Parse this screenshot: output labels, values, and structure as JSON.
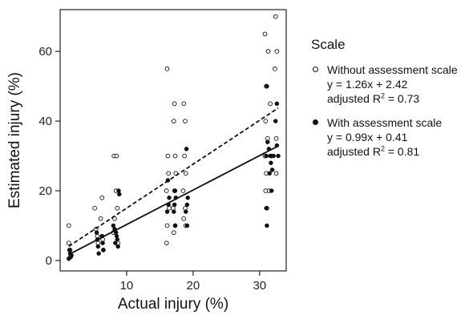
{
  "chart_data": {
    "type": "scatter",
    "xlabel": "Actual injury (%)",
    "ylabel": "Estimated injury (%)",
    "xlim": [
      0,
      34
    ],
    "ylim": [
      -3,
      72
    ],
    "xticks": [
      10,
      20,
      30
    ],
    "yticks": [
      0,
      20,
      40,
      60
    ],
    "grid": false,
    "legend_title": "Scale",
    "legend_placement": "right",
    "series": [
      {
        "name": "Without assessment scale",
        "marker": "open-circle",
        "line_style": "dashed",
        "equation": "y = 1.26x + 2.42",
        "r2_label": "adjusted R",
        "r2_value": "= 0.73",
        "slope": 1.26,
        "intercept": 2.42,
        "points": [
          [
            1.3,
            10
          ],
          [
            1.3,
            5
          ],
          [
            1.5,
            3
          ],
          [
            1.6,
            1.5
          ],
          [
            5.2,
            15
          ],
          [
            5.4,
            9
          ],
          [
            5.6,
            7
          ],
          [
            5.7,
            5
          ],
          [
            6.3,
            18
          ],
          [
            6.1,
            12
          ],
          [
            6.4,
            6
          ],
          [
            6.5,
            3
          ],
          [
            8.1,
            30
          ],
          [
            8.5,
            30
          ],
          [
            8.4,
            20
          ],
          [
            8.6,
            15
          ],
          [
            8.2,
            12
          ],
          [
            8.0,
            8
          ],
          [
            8.7,
            5
          ],
          [
            16.1,
            55
          ],
          [
            16.2,
            30
          ],
          [
            16.3,
            25
          ],
          [
            16.0,
            20
          ],
          [
            16.4,
            15
          ],
          [
            16.1,
            10
          ],
          [
            16.0,
            5
          ],
          [
            17.2,
            45
          ],
          [
            17.1,
            40
          ],
          [
            17.3,
            30
          ],
          [
            17.4,
            25
          ],
          [
            17.2,
            20
          ],
          [
            17.0,
            15
          ],
          [
            17.3,
            10
          ],
          [
            17.1,
            8
          ],
          [
            18.6,
            45
          ],
          [
            18.8,
            40
          ],
          [
            18.7,
            30
          ],
          [
            18.9,
            25
          ],
          [
            18.5,
            20
          ],
          [
            18.8,
            15
          ],
          [
            18.6,
            12
          ],
          [
            18.9,
            10
          ],
          [
            30.8,
            65
          ],
          [
            31.3,
            60
          ],
          [
            32.4,
            70
          ],
          [
            32.6,
            60
          ],
          [
            32.3,
            55
          ],
          [
            31.0,
            50
          ],
          [
            31.6,
            45
          ],
          [
            30.9,
            40
          ],
          [
            31.2,
            35
          ],
          [
            32.5,
            35
          ],
          [
            30.8,
            30
          ],
          [
            31.8,
            30
          ],
          [
            31.0,
            25
          ],
          [
            31.4,
            20
          ],
          [
            30.9,
            20
          ],
          [
            32.5,
            25
          ],
          [
            31.1,
            15
          ]
        ]
      },
      {
        "name": "With assessment scale",
        "marker": "filled-circle",
        "line_style": "solid",
        "equation": "y = 0.99x + 0.41",
        "r2_label": "adjusted R",
        "r2_value": "= 0.81",
        "slope": 0.99,
        "intercept": 0.41,
        "points": [
          [
            1.4,
            3
          ],
          [
            1.5,
            2
          ],
          [
            1.6,
            1
          ],
          [
            1.3,
            0.5
          ],
          [
            1.7,
            1.5
          ],
          [
            5.5,
            8
          ],
          [
            5.6,
            6
          ],
          [
            5.7,
            4
          ],
          [
            5.8,
            2
          ],
          [
            6.3,
            7
          ],
          [
            6.4,
            5
          ],
          [
            6.5,
            3
          ],
          [
            8.0,
            10
          ],
          [
            8.2,
            9
          ],
          [
            8.4,
            8
          ],
          [
            8.5,
            7
          ],
          [
            8.6,
            6
          ],
          [
            8.3,
            5
          ],
          [
            8.7,
            4
          ],
          [
            8.8,
            20
          ],
          [
            8.9,
            19
          ],
          [
            16.2,
            23
          ],
          [
            16.4,
            18
          ],
          [
            16.3,
            16
          ],
          [
            16.1,
            14
          ],
          [
            17.3,
            20
          ],
          [
            17.4,
            18
          ],
          [
            17.2,
            16
          ],
          [
            17.1,
            14
          ],
          [
            17.3,
            10
          ],
          [
            19.0,
            32
          ],
          [
            19.2,
            18
          ],
          [
            19.1,
            16
          ],
          [
            18.9,
            14
          ],
          [
            19.1,
            10
          ],
          [
            31.1,
            50
          ],
          [
            32.6,
            45
          ],
          [
            32.4,
            40
          ],
          [
            31.2,
            34
          ],
          [
            31.4,
            32
          ],
          [
            32.6,
            33
          ],
          [
            31.0,
            30
          ],
          [
            31.6,
            30
          ],
          [
            32.1,
            30
          ],
          [
            31.7,
            28
          ],
          [
            31.9,
            26
          ],
          [
            31.5,
            25
          ],
          [
            31.8,
            20
          ],
          [
            31.0,
            15
          ],
          [
            31.1,
            10
          ],
          [
            32.8,
            30
          ]
        ]
      }
    ]
  }
}
